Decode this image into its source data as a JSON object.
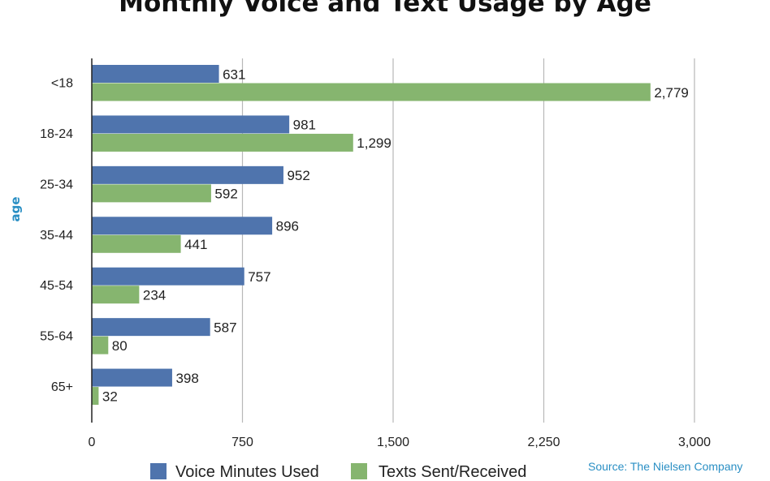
{
  "chart_data": {
    "type": "bar",
    "orientation": "horizontal",
    "title": "Monthly Voice and Text Usage by Age",
    "ylabel": "age",
    "xlabel": "",
    "categories": [
      "<18",
      "18-24",
      "25-34",
      "35-44",
      "45-54",
      "55-64",
      "65+"
    ],
    "series": [
      {
        "name": "Voice Minutes Used",
        "color": "#4f74ad",
        "values": [
          631,
          981,
          952,
          896,
          757,
          587,
          398
        ]
      },
      {
        "name": "Texts Sent/Received",
        "color": "#86b56f",
        "values": [
          2779,
          1299,
          592,
          441,
          234,
          80,
          32
        ]
      }
    ],
    "value_labels": [
      [
        "631",
        "981",
        "952",
        "896",
        "757",
        "587",
        "398"
      ],
      [
        "2,779",
        "1,299",
        "592",
        "441",
        "234",
        "80",
        "32"
      ]
    ],
    "xlim": [
      0,
      3000
    ],
    "xticks": [
      0,
      750,
      1500,
      2250,
      3000
    ],
    "xtick_labels": [
      "0",
      "750",
      "1,500",
      "2,250",
      "3,000"
    ],
    "grid": true,
    "legend_position": "bottom",
    "source": "Source: The Nielsen Company"
  }
}
